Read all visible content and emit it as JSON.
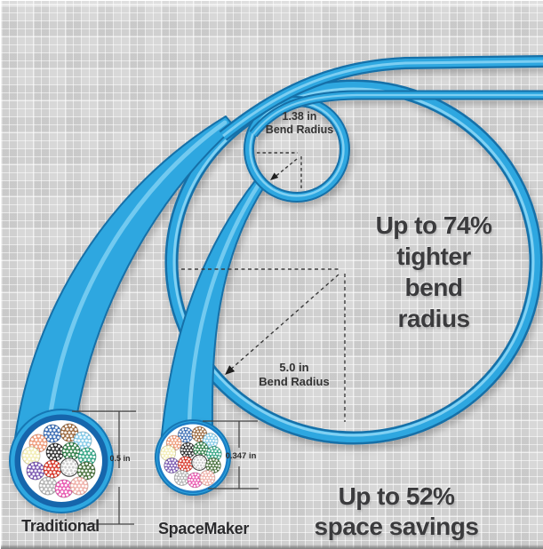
{
  "headline_74": {
    "lines": [
      "Up to 74%",
      "tighter",
      "bend",
      "radius"
    ]
  },
  "headline_52": {
    "lines": [
      "Up to 52%",
      "space savings"
    ]
  },
  "small_loop": {
    "value": "1.38 in",
    "label": "Bend Radius"
  },
  "big_loop": {
    "value": "5.0 in",
    "label": "Bend Radius"
  },
  "traditional": {
    "name": "Traditional",
    "diameter": "0.5 in"
  },
  "spacemaker": {
    "name": "SpaceMaker",
    "diameter": "0.347 in"
  },
  "colors": {
    "cable_main": "#2FA7E0",
    "cable_dark": "#1470A8",
    "cable_highlight": "#8FD8F6",
    "jacket_stroke": "#1677B4",
    "ring_traditional": "#1566AC",
    "ring_spacemaker": "#1B7EC6",
    "headline_text": "#3B3B3D",
    "annotation": "#3A3A3A",
    "background": "#D8D8D8"
  },
  "fiber_bundles": [
    {
      "name": "blue",
      "color": "#3C6EB4"
    },
    {
      "name": "brown",
      "color": "#9C6B3F"
    },
    {
      "name": "salmon",
      "color": "#EE9A78"
    },
    {
      "name": "sky",
      "color": "#86CBE8"
    },
    {
      "name": "black",
      "color": "#2B2B2B"
    },
    {
      "name": "green",
      "color": "#2F7D46"
    },
    {
      "name": "yellow",
      "color": "#F2EDB4"
    },
    {
      "name": "teal",
      "color": "#35A585"
    },
    {
      "name": "purple",
      "color": "#7A58B0"
    },
    {
      "name": "red",
      "color": "#D8392B"
    },
    {
      "name": "white",
      "color": "#FFFFFF"
    },
    {
      "name": "olive",
      "color": "#47703A"
    },
    {
      "name": "gray",
      "color": "#B3B3B3"
    },
    {
      "name": "pink",
      "color": "#E959B0"
    },
    {
      "name": "rose",
      "color": "#EFB0A8"
    }
  ]
}
